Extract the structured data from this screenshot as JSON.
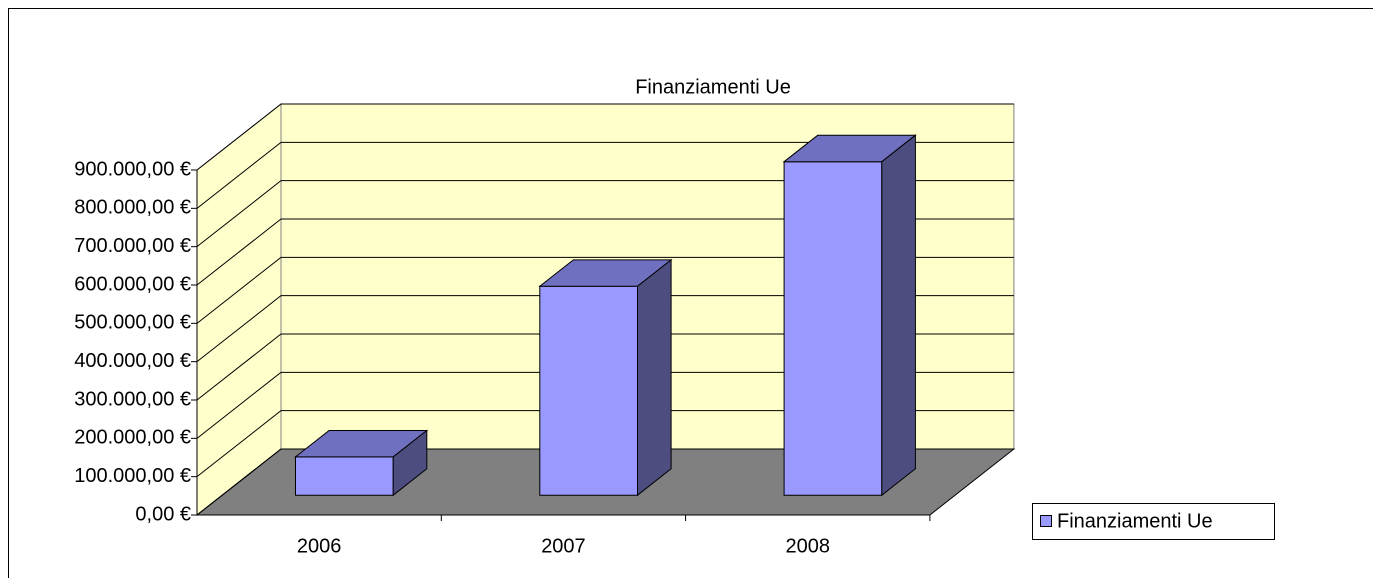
{
  "chart_data": {
    "type": "bar3d",
    "title": "Finanziamenti Ue",
    "categories": [
      "2006",
      "2007",
      "2008"
    ],
    "series": [
      {
        "name": "Finanziamenti Ue",
        "color": "#9999ff",
        "values": [
          100000,
          545000,
          870000
        ]
      }
    ],
    "ylim": [
      0,
      900000
    ],
    "yticks": [
      {
        "value": 0,
        "label": "0,00 €"
      },
      {
        "value": 100000,
        "label": "100.000,00 €"
      },
      {
        "value": 200000,
        "label": "200.000,00 €"
      },
      {
        "value": 300000,
        "label": "300.000,00 €"
      },
      {
        "value": 400000,
        "label": "400.000,00 €"
      },
      {
        "value": 500000,
        "label": "500.000,00 €"
      },
      {
        "value": 600000,
        "label": "600.000,00 €"
      },
      {
        "value": 700000,
        "label": "700.000,00 €"
      },
      {
        "value": 800000,
        "label": "800.000,00 €"
      },
      {
        "value": 900000,
        "label": "900.000,00 €"
      }
    ],
    "grid": true,
    "legend": "right"
  }
}
